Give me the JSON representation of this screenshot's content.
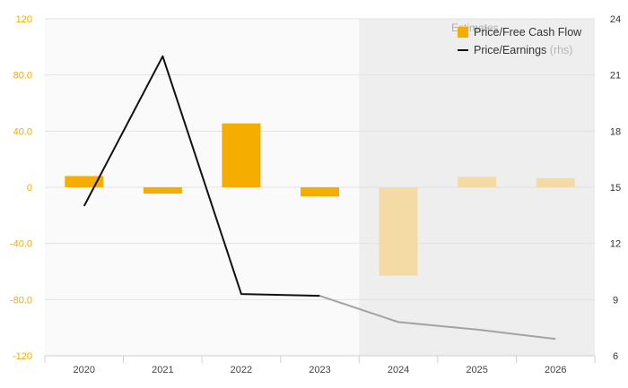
{
  "chart_data": {
    "type": "bar",
    "categories": [
      "2020",
      "2021",
      "2022",
      "2023",
      "2024",
      "2025",
      "2026"
    ],
    "estimates_label": "Estimates",
    "estimates_start_index": 4,
    "series": [
      {
        "name": "Price/Free Cash Flow",
        "type": "bar",
        "axis": "left",
        "color": "#f5ad00",
        "estimate_color": "#f4dba6",
        "values": [
          8.0,
          -4.5,
          45.5,
          -6.5,
          -63.0,
          7.5,
          6.5
        ]
      },
      {
        "name": "Price/Earnings",
        "name_suffix": "(rhs)",
        "type": "line",
        "axis": "right",
        "color": "#111111",
        "estimate_color": "#a3a3a3",
        "values": [
          14.0,
          22.0,
          9.3,
          9.2,
          7.8,
          7.4,
          6.9
        ]
      }
    ],
    "left_axis": {
      "ylim": [
        -120,
        120
      ],
      "ticks": [
        120,
        80,
        40,
        0,
        -40,
        -80,
        -120
      ],
      "tick_labels": [
        "120",
        "80.0",
        "40.0",
        "0",
        "-40.0",
        "-80.0",
        "-120"
      ],
      "color": "#f5ad00"
    },
    "right_axis": {
      "ylim": [
        6,
        24
      ],
      "ticks": [
        24,
        21,
        18,
        15,
        12,
        9,
        6
      ],
      "tick_labels": [
        "24",
        "21",
        "18",
        "15",
        "12",
        "9",
        "6"
      ]
    },
    "grid": true,
    "legend_position": "top-right"
  }
}
